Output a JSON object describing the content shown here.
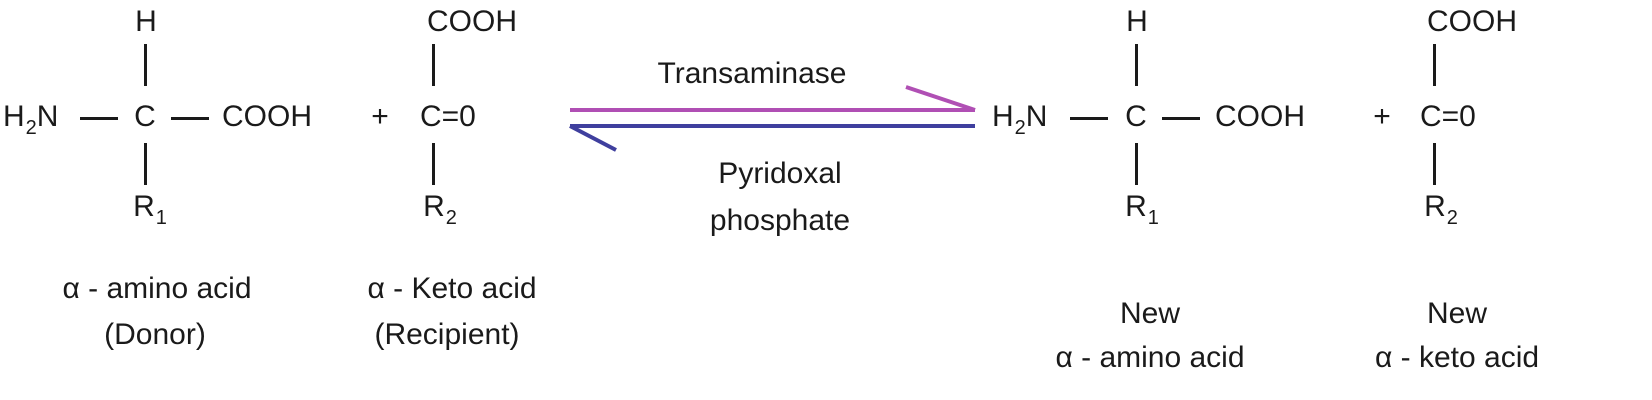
{
  "reactant_amino_acid": {
    "top": "H",
    "left_main": "H",
    "left_sub": "2",
    "left_tail": "N",
    "center": "C",
    "right": "COOH",
    "bottom_main": "R",
    "bottom_sub": "1"
  },
  "plus_1": "+",
  "reactant_keto_acid": {
    "top": "COOH",
    "center": "C=0",
    "bottom_main": "R",
    "bottom_sub": "2"
  },
  "enzyme_label": "Transaminase",
  "cofactor_line1": "Pyridoxal",
  "cofactor_line2": "phosphate",
  "product_amino_acid": {
    "top": "H",
    "left_main": "H",
    "left_sub": "2",
    "left_tail": "N",
    "center": "C",
    "right": "COOH",
    "bottom_main": "R",
    "bottom_sub": "1"
  },
  "plus_2": "+",
  "product_keto_acid": {
    "top": "COOH",
    "center": "C=0",
    "bottom_main": "R",
    "bottom_sub": "2"
  },
  "captions": {
    "donor_line1": "α - amino acid",
    "donor_line2": "(Donor)",
    "recipient_line1": "α - Keto acid",
    "recipient_line2": "(Recipient)",
    "new_amino_line1": "New",
    "new_amino_line2": "α - amino acid",
    "new_keto_line1": "New",
    "new_keto_line2": "α - keto acid"
  },
  "colors": {
    "forward_arrow": "#b04fb4",
    "reverse_arrow": "#3f3f9e",
    "text": "#1a1a1a"
  }
}
